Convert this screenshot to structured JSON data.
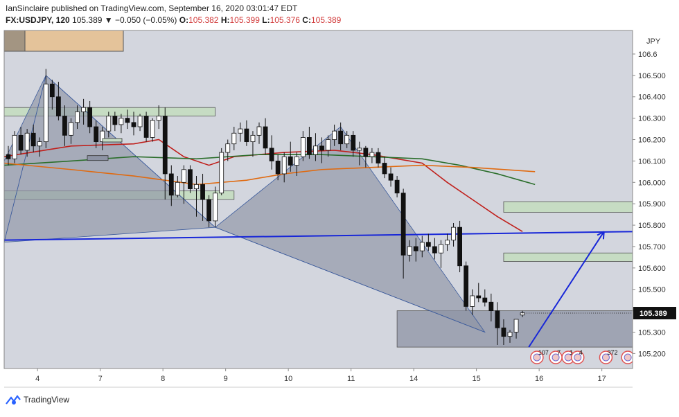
{
  "header": {
    "line1": "IanSinclaire published on TradingView.com, September 16, 2020 03:01:47 EDT",
    "symbol": "FX:USDJPY, 120",
    "last": "105.389",
    "change": "▼ −0.050 (−0.05%)",
    "o_label": "O:",
    "o": "105.382",
    "h_label": "H:",
    "h": "105.399",
    "l_label": "L:",
    "l": "105.376",
    "c_label": "C:",
    "c": "105.389"
  },
  "footer": {
    "brand": "TradingView",
    "logo_icon": "tradingview-logo-icon"
  },
  "colors": {
    "plot_bg": "#d3d6de",
    "up": "#ffffff",
    "down": "#111111",
    "ma_red": "#c0201c",
    "ma_green": "#2b6e2b",
    "ma_orange": "#e06a10",
    "trend_blue": "#1726d8",
    "zone_green": "#c6dcc3",
    "pattern": "#8d93a4",
    "price_tag": "#111111"
  },
  "chart_data": {
    "type": "candlestick",
    "currency_label": "JPY",
    "ylim": [
      105.13,
      106.71
    ],
    "y_ticks": [
      105.2,
      105.3,
      105.4,
      105.5,
      105.6,
      105.7,
      105.8,
      105.9,
      106.0,
      106.1,
      106.2,
      106.3,
      106.4,
      106.5,
      106.6
    ],
    "y_tick_labels": [
      "105.200",
      "105.300",
      "105.400",
      "105.500",
      "105.600",
      "105.700",
      "105.800",
      "105.900",
      "106.000",
      "106.100",
      "106.200",
      "106.300",
      "106.400",
      "106.500",
      "106.6"
    ],
    "x_ticks": [
      {
        "label": "4",
        "bar": 3
      },
      {
        "label": "7",
        "bar": 13
      },
      {
        "label": "8",
        "bar": 23
      },
      {
        "label": "9",
        "bar": 33
      },
      {
        "label": "10",
        "bar": 43
      },
      {
        "label": "11",
        "bar": 53
      },
      {
        "label": "14",
        "bar": 63
      },
      {
        "label": "15",
        "bar": 73
      },
      {
        "label": "16",
        "bar": 83
      },
      {
        "label": "17",
        "bar": 93
      }
    ],
    "last_price": 105.389,
    "candles": [
      [
        106.13,
        106.17,
        106.08,
        106.11
      ],
      [
        106.11,
        106.24,
        106.09,
        106.22
      ],
      [
        106.22,
        106.26,
        106.13,
        106.15
      ],
      [
        106.15,
        106.25,
        106.12,
        106.23
      ],
      [
        106.23,
        106.27,
        106.14,
        106.17
      ],
      [
        106.17,
        106.21,
        106.12,
        106.19
      ],
      [
        106.19,
        106.53,
        106.16,
        106.46
      ],
      [
        106.46,
        106.48,
        106.34,
        106.4
      ],
      [
        106.4,
        106.47,
        106.29,
        106.31
      ],
      [
        106.31,
        106.36,
        106.17,
        106.22
      ],
      [
        106.22,
        106.3,
        106.18,
        106.28
      ],
      [
        106.28,
        106.36,
        106.25,
        106.33
      ],
      [
        106.33,
        106.39,
        106.27,
        106.35
      ],
      [
        106.35,
        106.38,
        106.23,
        106.26
      ],
      [
        106.26,
        106.29,
        106.16,
        106.19
      ],
      [
        106.19,
        106.26,
        106.15,
        106.24
      ],
      [
        106.24,
        106.33,
        106.21,
        106.31
      ],
      [
        106.31,
        106.33,
        106.24,
        106.27
      ],
      [
        106.27,
        106.32,
        106.23,
        106.3
      ],
      [
        106.3,
        106.34,
        106.25,
        106.28
      ],
      [
        106.28,
        106.33,
        106.22,
        106.26
      ],
      [
        106.26,
        106.32,
        106.24,
        106.31
      ],
      [
        106.31,
        106.33,
        106.19,
        106.21
      ],
      [
        106.21,
        106.3,
        106.19,
        106.29
      ],
      [
        106.29,
        106.36,
        106.25,
        106.31
      ],
      [
        106.31,
        106.35,
        105.92,
        106.04
      ],
      [
        106.04,
        106.08,
        105.89,
        105.94
      ],
      [
        105.94,
        106.03,
        105.93,
        106.0
      ],
      [
        106.0,
        106.08,
        105.9,
        106.06
      ],
      [
        106.06,
        106.08,
        105.95,
        105.97
      ],
      [
        105.97,
        106.03,
        105.84,
        105.99
      ],
      [
        105.99,
        106.04,
        105.82,
        105.92
      ],
      [
        105.92,
        105.94,
        105.79,
        105.82
      ],
      [
        105.82,
        105.98,
        105.79,
        105.95
      ],
      [
        105.95,
        106.16,
        105.94,
        106.14
      ],
      [
        106.14,
        106.2,
        106.1,
        106.18
      ],
      [
        106.18,
        106.26,
        106.15,
        106.23
      ],
      [
        106.23,
        106.28,
        106.19,
        106.25
      ],
      [
        106.25,
        106.29,
        106.17,
        106.19
      ],
      [
        106.19,
        106.24,
        106.12,
        106.22
      ],
      [
        106.22,
        106.28,
        106.18,
        106.26
      ],
      [
        106.26,
        106.3,
        106.13,
        106.16
      ],
      [
        106.16,
        106.22,
        106.06,
        106.1
      ],
      [
        106.1,
        106.13,
        106.01,
        106.04
      ],
      [
        106.04,
        106.14,
        106.0,
        106.12
      ],
      [
        106.12,
        106.19,
        106.05,
        106.08
      ],
      [
        106.08,
        106.14,
        106.03,
        106.12
      ],
      [
        106.12,
        106.24,
        106.1,
        106.21
      ],
      [
        106.21,
        106.26,
        106.11,
        106.13
      ],
      [
        106.13,
        106.23,
        106.1,
        106.17
      ],
      [
        106.17,
        106.21,
        106.09,
        106.15
      ],
      [
        106.15,
        106.22,
        106.12,
        106.2
      ],
      [
        106.2,
        106.27,
        106.17,
        106.24
      ],
      [
        106.24,
        106.28,
        106.15,
        106.18
      ],
      [
        106.18,
        106.24,
        106.16,
        106.22
      ],
      [
        106.22,
        106.24,
        106.12,
        106.15
      ],
      [
        106.15,
        106.19,
        106.08,
        106.16
      ],
      [
        106.16,
        106.17,
        106.07,
        106.12
      ],
      [
        106.12,
        106.16,
        106.09,
        106.14
      ],
      [
        106.14,
        106.16,
        106.07,
        106.09
      ],
      [
        106.09,
        106.12,
        106.02,
        106.04
      ],
      [
        106.04,
        106.07,
        105.98,
        106.01
      ],
      [
        106.01,
        106.03,
        105.93,
        105.95
      ],
      [
        105.95,
        105.97,
        105.55,
        105.66
      ],
      [
        105.66,
        105.73,
        105.63,
        105.7
      ],
      [
        105.7,
        105.74,
        105.63,
        105.68
      ],
      [
        105.68,
        105.75,
        105.65,
        105.72
      ],
      [
        105.72,
        105.76,
        105.68,
        105.7
      ],
      [
        105.7,
        105.74,
        105.64,
        105.67
      ],
      [
        105.67,
        105.73,
        105.6,
        105.71
      ],
      [
        105.71,
        105.76,
        105.68,
        105.73
      ],
      [
        105.73,
        105.81,
        105.7,
        105.79
      ],
      [
        105.79,
        105.82,
        105.58,
        105.61
      ],
      [
        105.61,
        105.63,
        105.4,
        105.42
      ],
      [
        105.42,
        105.5,
        105.38,
        105.47
      ],
      [
        105.47,
        105.53,
        105.44,
        105.46
      ],
      [
        105.46,
        105.5,
        105.42,
        105.44
      ],
      [
        105.44,
        105.48,
        105.35,
        105.4
      ],
      [
        105.4,
        105.44,
        105.24,
        105.32
      ],
      [
        105.32,
        105.36,
        105.24,
        105.28
      ],
      [
        105.28,
        105.31,
        105.25,
        105.3
      ],
      [
        105.3,
        105.36,
        105.27,
        105.36
      ],
      [
        105.38,
        105.4,
        105.37,
        105.39
      ]
    ],
    "moving_averages": [
      {
        "color": "ma_red",
        "points": [
          [
            0,
            106.12
          ],
          [
            10,
            106.17
          ],
          [
            20,
            106.18
          ],
          [
            24,
            106.2
          ],
          [
            28,
            106.12
          ],
          [
            32,
            106.08
          ],
          [
            36,
            106.12
          ],
          [
            44,
            106.14
          ],
          [
            52,
            106.15
          ],
          [
            58,
            106.13
          ],
          [
            62,
            106.11
          ],
          [
            66,
            106.09
          ],
          [
            70,
            106.0
          ],
          [
            74,
            105.92
          ],
          [
            78,
            105.84
          ],
          [
            82,
            105.77
          ]
        ]
      },
      {
        "color": "ma_green",
        "points": [
          [
            0,
            106.08
          ],
          [
            10,
            106.1
          ],
          [
            20,
            106.12
          ],
          [
            30,
            106.11
          ],
          [
            40,
            106.13
          ],
          [
            50,
            106.13
          ],
          [
            58,
            106.12
          ],
          [
            66,
            106.11
          ],
          [
            72,
            106.08
          ],
          [
            78,
            106.04
          ],
          [
            84,
            105.99
          ]
        ]
      },
      {
        "color": "ma_orange",
        "points": [
          [
            0,
            106.09
          ],
          [
            10,
            106.06
          ],
          [
            20,
            106.03
          ],
          [
            30,
            105.99
          ],
          [
            38,
            106.01
          ],
          [
            44,
            106.04
          ],
          [
            50,
            106.06
          ],
          [
            58,
            106.07
          ],
          [
            66,
            106.08
          ],
          [
            74,
            106.07
          ],
          [
            84,
            106.05
          ]
        ]
      }
    ],
    "trend_line": [
      [
        0,
        105.73
      ],
      [
        100,
        105.77
      ]
    ],
    "target_arrow": [
      [
        83,
        105.23
      ],
      [
        95,
        105.77
      ]
    ],
    "pattern_points": [
      [
        0,
        106.1
      ],
      [
        6,
        106.5
      ],
      [
        33,
        105.79
      ],
      [
        53,
        106.26
      ],
      [
        76,
        105.3
      ]
    ],
    "zones": [
      {
        "x0": 0,
        "x1": 33,
        "y0": 106.31,
        "y1": 106.35,
        "fill": "zone_green"
      },
      {
        "x0": 0,
        "x1": 36,
        "y0": 105.92,
        "y1": 105.96,
        "fill": "zone_green"
      },
      {
        "x0": 79,
        "x1": 100,
        "y0": 105.86,
        "y1": 105.91,
        "fill": "zone_green"
      },
      {
        "x0": 79,
        "x1": 100,
        "y0": 105.63,
        "y1": 105.67,
        "fill": "zone_green"
      },
      {
        "x0": 62,
        "x1": 100,
        "y0": 105.23,
        "y1": 105.4,
        "fill": "pattern"
      }
    ],
    "event_markers": [
      {
        "bar": 84.3,
        "label": "107"
      },
      {
        "bar": 87.3,
        "label": "7"
      },
      {
        "bar": 89.3,
        "label": "1"
      },
      {
        "bar": 90.8,
        "label": "4"
      },
      {
        "bar": 95.3,
        "label": "372"
      },
      {
        "bar": 98.8,
        "label": ""
      }
    ]
  }
}
